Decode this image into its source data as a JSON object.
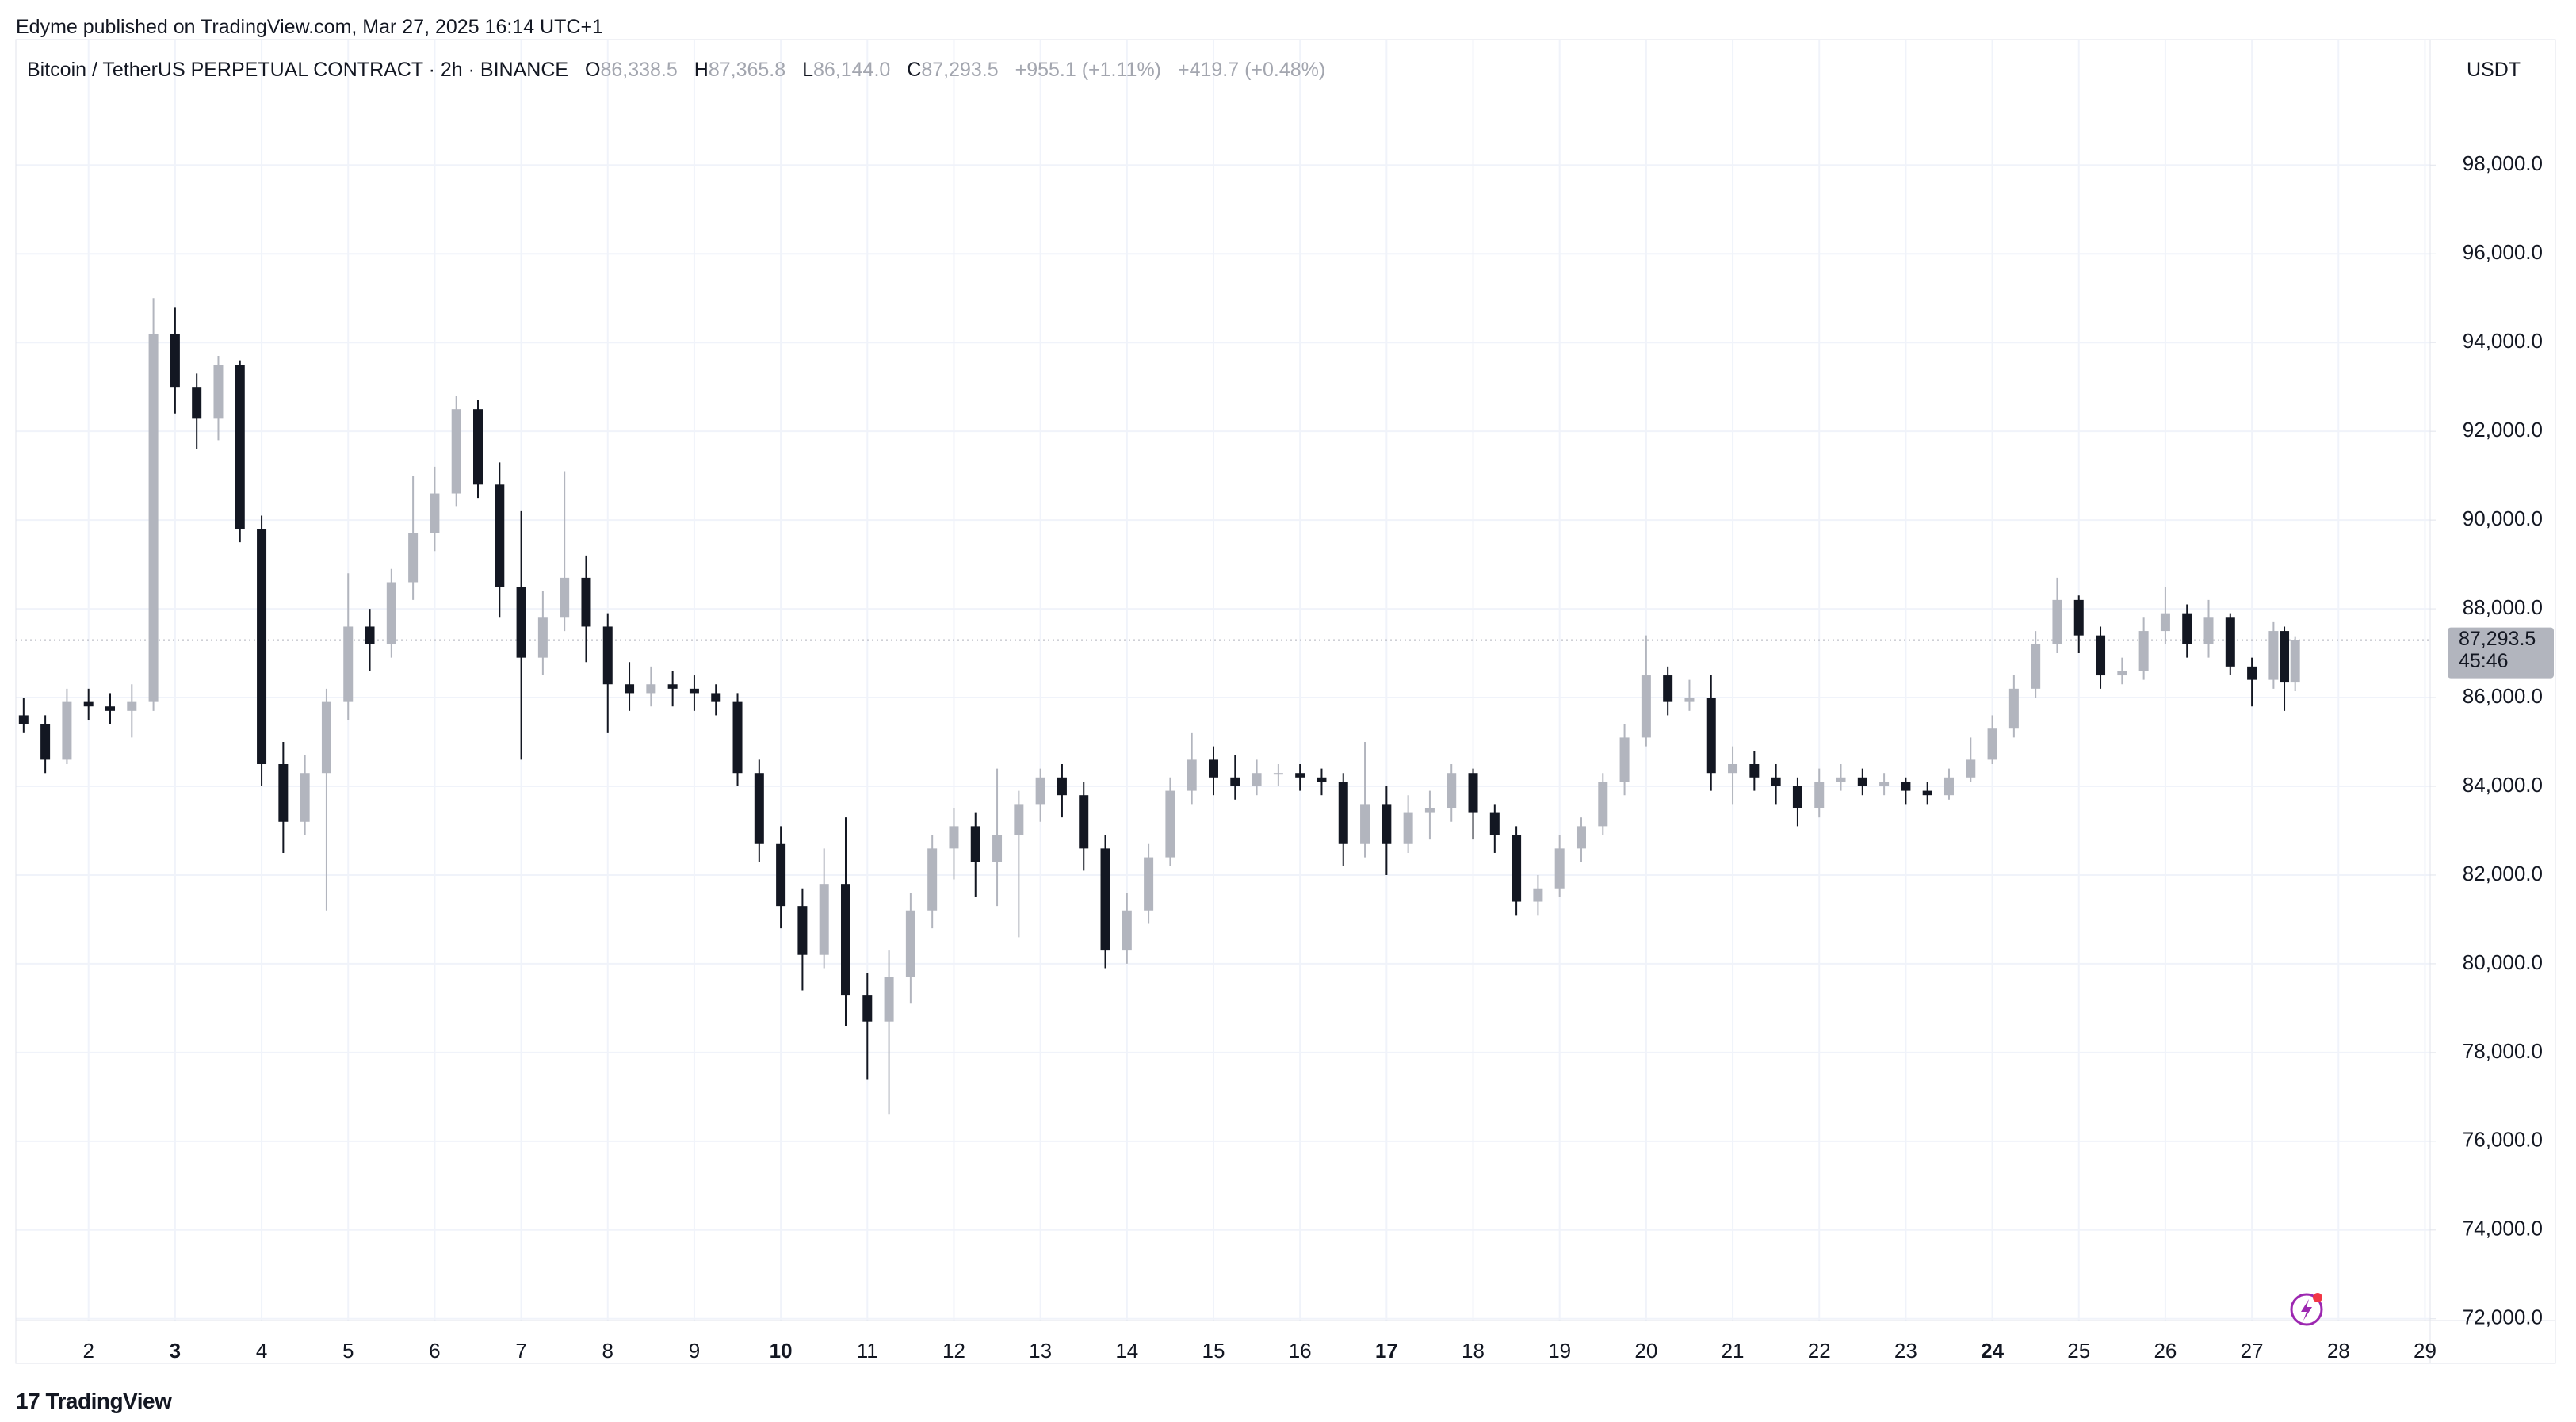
{
  "header": {
    "published": "Edyme published on TradingView.com, Mar 27, 2025 16:14 UTC+1",
    "brand": "TradingView"
  },
  "chart_data": {
    "type": "candlestick",
    "title": "Bitcoin / TetherUS PERPETUAL CONTRACT · 2h · BINANCE",
    "legend": {
      "items": [
        {
          "key": "O",
          "value": "86,338.5"
        },
        {
          "key": "H",
          "value": "87,365.8"
        },
        {
          "key": "L",
          "value": "86,144.0"
        },
        {
          "key": "C",
          "value": "87,293.5"
        }
      ],
      "change": "+955.1 (+1.11%)",
      "change2": "+419.7 (+0.48%)"
    },
    "currency": "USDT",
    "x": [
      1.25,
      1.5,
      1.75,
      2,
      2.25,
      2.5,
      2.75,
      3,
      3.25,
      3.5,
      3.75,
      4,
      4.25,
      4.5,
      4.75,
      5,
      5.25,
      5.5,
      5.75,
      6,
      6.25,
      6.5,
      6.75,
      7,
      7.25,
      7.5,
      7.75,
      8,
      8.25,
      8.5,
      8.75,
      9,
      9.25,
      9.5,
      9.75,
      10,
      10.25,
      10.5,
      10.75,
      11,
      11.25,
      11.5,
      11.75,
      12,
      12.25,
      12.5,
      12.75,
      13,
      13.25,
      13.5,
      13.75,
      14,
      14.25,
      14.5,
      14.75,
      15,
      15.25,
      15.5,
      15.75,
      16,
      16.25,
      16.5,
      16.75,
      17,
      17.25,
      17.5,
      17.75,
      18,
      18.25,
      18.5,
      18.75,
      19,
      19.25,
      19.5,
      19.75,
      20,
      20.25,
      20.5,
      20.75,
      21,
      21.25,
      21.5,
      21.75,
      22,
      22.25,
      22.5,
      22.75,
      23,
      23.25,
      23.5,
      23.75,
      24,
      24.25,
      24.5,
      24.75,
      25,
      25.25,
      25.5,
      25.75,
      26,
      26.25,
      26.5,
      26.75,
      27,
      27.25,
      27.375,
      27.5
    ],
    "open": [
      85600,
      85400,
      84600,
      85900,
      85800,
      85700,
      85900,
      94200,
      93000,
      92300,
      93500,
      89800,
      84500,
      83200,
      84300,
      85900,
      87600,
      87200,
      88600,
      89700,
      90600,
      92500,
      90800,
      88500,
      86900,
      87800,
      88700,
      87600,
      86300,
      86100,
      86300,
      86200,
      86100,
      85900,
      84300,
      82700,
      81300,
      80200,
      81800,
      79300,
      78700,
      79700,
      81200,
      82600,
      83100,
      82300,
      82900,
      83600,
      84200,
      83800,
      82600,
      80300,
      81200,
      82400,
      83900,
      84600,
      84200,
      84000,
      84300,
      84300,
      84200,
      84100,
      82700,
      83600,
      82700,
      83400,
      83500,
      84300,
      83400,
      82900,
      81400,
      81700,
      82600,
      83100,
      84100,
      85100,
      86500,
      85900,
      86000,
      84300,
      84500,
      84200,
      84000,
      83500,
      84100,
      84200,
      84000,
      84100,
      83900,
      83800,
      84200,
      84600,
      85300,
      86200,
      87200,
      88200,
      87400,
      86500,
      86600,
      87500,
      87900,
      87200,
      87800,
      86700,
      86400,
      87500,
      86338.5
    ],
    "high": [
      86000,
      85600,
      86200,
      86200,
      86100,
      86300,
      95000,
      94800,
      93300,
      93700,
      93600,
      90100,
      85000,
      84700,
      86200,
      88800,
      88000,
      88900,
      91000,
      91200,
      92800,
      92700,
      91300,
      90200,
      88400,
      91100,
      89200,
      87900,
      86800,
      86700,
      86600,
      86500,
      86300,
      86100,
      84600,
      83100,
      81700,
      82600,
      83300,
      79800,
      80300,
      81600,
      82900,
      83500,
      83400,
      84400,
      83900,
      84400,
      84500,
      84100,
      82900,
      81600,
      82700,
      84200,
      85200,
      84900,
      84700,
      84600,
      84500,
      84500,
      84400,
      84300,
      85000,
      84000,
      83800,
      83900,
      84500,
      84400,
      83600,
      83100,
      82000,
      82900,
      83300,
      84300,
      85400,
      87400,
      86700,
      86400,
      86500,
      84900,
      84800,
      84500,
      84200,
      84400,
      84500,
      84400,
      84300,
      84200,
      84100,
      84400,
      85100,
      85600,
      86500,
      87500,
      88700,
      88300,
      87600,
      86900,
      87800,
      88500,
      88100,
      88200,
      87900,
      86900,
      87700,
      87600,
      87365.8
    ],
    "low": [
      85200,
      84300,
      84500,
      85500,
      85400,
      85100,
      85700,
      92400,
      91600,
      91800,
      89500,
      84000,
      82500,
      82900,
      81200,
      85500,
      86600,
      86900,
      88200,
      89300,
      90300,
      90500,
      87800,
      84600,
      86500,
      87500,
      86800,
      85200,
      85700,
      85800,
      85800,
      85700,
      85600,
      84000,
      82300,
      80800,
      79400,
      79900,
      78600,
      77400,
      76600,
      79100,
      80800,
      81900,
      81500,
      81300,
      80600,
      83200,
      83300,
      82100,
      79900,
      80000,
      80900,
      82200,
      83600,
      83800,
      83700,
      83800,
      84000,
      83900,
      83800,
      82200,
      82400,
      82000,
      82500,
      82800,
      83200,
      82800,
      82500,
      81100,
      81100,
      81500,
      82300,
      82900,
      83800,
      84900,
      85600,
      85700,
      83900,
      83600,
      83900,
      83600,
      83100,
      83300,
      83900,
      83800,
      83800,
      83600,
      83600,
      83700,
      84100,
      84500,
      85100,
      86000,
      87000,
      87000,
      86200,
      86300,
      86400,
      87200,
      86900,
      86900,
      86500,
      85800,
      86200,
      85700,
      86144
    ],
    "close": [
      85400,
      84600,
      85900,
      85800,
      85700,
      85900,
      94200,
      93000,
      92300,
      93500,
      89800,
      84500,
      83200,
      84300,
      85900,
      87600,
      87200,
      88600,
      89700,
      90600,
      92500,
      90800,
      88500,
      86900,
      87800,
      88700,
      87600,
      86300,
      86100,
      86300,
      86200,
      86100,
      85900,
      84300,
      82700,
      81300,
      80200,
      81800,
      79300,
      78700,
      79700,
      81200,
      82600,
      83100,
      82300,
      82900,
      83600,
      84200,
      83800,
      82600,
      80300,
      81200,
      82400,
      83900,
      84600,
      84200,
      84000,
      84300,
      84300,
      84200,
      84100,
      82700,
      83600,
      82700,
      83400,
      83500,
      84300,
      83400,
      82900,
      81400,
      81700,
      82600,
      83100,
      84100,
      85100,
      86500,
      85900,
      86000,
      84300,
      84500,
      84200,
      84000,
      83500,
      84100,
      84200,
      84000,
      84100,
      83900,
      83800,
      84200,
      84600,
      85300,
      86200,
      87200,
      88200,
      87400,
      86500,
      86600,
      87500,
      87900,
      87200,
      87800,
      86700,
      86400,
      87500,
      86338.5,
      87293.5
    ],
    "up_color": "#b2b5be",
    "down_color": "#131722",
    "xlim": [
      1.16,
      29.06
    ],
    "xticks": [
      2,
      3,
      4,
      5,
      6,
      7,
      8,
      9,
      10,
      11,
      12,
      13,
      14,
      15,
      16,
      17,
      18,
      19,
      20,
      21,
      22,
      23,
      24,
      25,
      26,
      27,
      28,
      29
    ],
    "bold_xticks": [
      3,
      10,
      17,
      24
    ],
    "ylim": [
      71960,
      100720
    ],
    "yticks": [
      {
        "value": 72000,
        "label": "72,000.0"
      },
      {
        "value": 74000,
        "label": "74,000.0"
      },
      {
        "value": 76000,
        "label": "76,000.0"
      },
      {
        "value": 78000,
        "label": "78,000.0"
      },
      {
        "value": 80000,
        "label": "80,000.0"
      },
      {
        "value": 82000,
        "label": "82,000.0"
      },
      {
        "value": 84000,
        "label": "84,000.0"
      },
      {
        "value": 86000,
        "label": "86,000.0"
      },
      {
        "value": 88000,
        "label": "88,000.0"
      },
      {
        "value": 90000,
        "label": "90,000.0"
      },
      {
        "value": 92000,
        "label": "92,000.0"
      },
      {
        "value": 94000,
        "label": "94,000.0"
      },
      {
        "value": 96000,
        "label": "96,000.0"
      },
      {
        "value": 98000,
        "label": "98,000.0"
      }
    ],
    "grid": true,
    "last_price": {
      "value": 87293.5,
      "label": "87,293.5"
    },
    "countdown": "45:46"
  }
}
